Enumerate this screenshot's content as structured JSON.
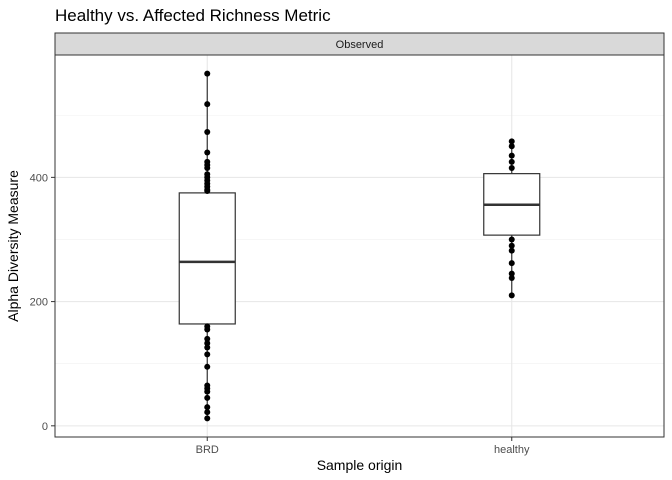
{
  "chart_data": {
    "type": "box",
    "title": "Healthy vs. Affected Richness Metric",
    "facet_label": "Observed",
    "xlabel": "Sample origin",
    "ylabel": "Alpha Diversity Measure",
    "categories": [
      "BRD",
      "healthy"
    ],
    "ylim": [
      -18,
      597
    ],
    "yticks": [
      0,
      200,
      400
    ],
    "grid": true,
    "boxes": [
      {
        "category": "BRD",
        "whisker_low": 12,
        "q1": 164,
        "median": 264,
        "q3": 375,
        "whisker_high": 567
      },
      {
        "category": "healthy",
        "whisker_low": 210,
        "q1": 307,
        "median": 356,
        "q3": 406,
        "whisker_high": 458
      }
    ],
    "points": [
      {
        "category": "BRD",
        "values": [
          567,
          518,
          473,
          440,
          425,
          420,
          415,
          405,
          400,
          395,
          390,
          385,
          380,
          378,
          160,
          155,
          140,
          133,
          126,
          115,
          95,
          65,
          60,
          55,
          45,
          30,
          22,
          12
        ]
      },
      {
        "category": "healthy",
        "values": [
          458,
          450,
          435,
          425,
          415,
          300,
          290,
          282,
          262,
          245,
          238,
          210
        ]
      }
    ]
  }
}
